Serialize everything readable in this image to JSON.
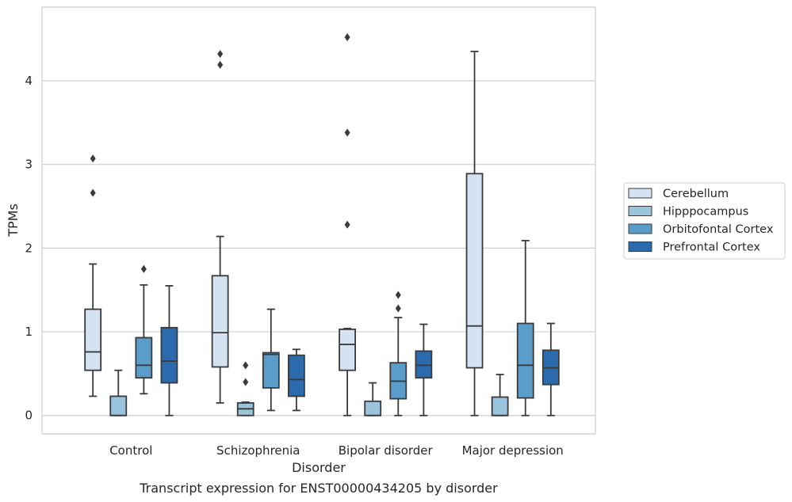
{
  "chart_data": {
    "type": "box",
    "title": "",
    "caption": "Transcript expression for ENST00000434205 by disorder",
    "xlabel": "Disorder",
    "ylabel": "TPMs",
    "ylim": [
      -0.22,
      4.88
    ],
    "yticks": [
      0,
      1,
      2,
      3,
      4
    ],
    "grid": "horizontal",
    "legend_position": "right",
    "categories": [
      "Control",
      "Schizophrenia",
      "Bipolar disorder",
      "Major depression"
    ],
    "series": [
      {
        "name": "Cerebellum",
        "color": "#d3e3f1",
        "boxes": [
          {
            "whislo": 0.23,
            "q1": 0.54,
            "med": 0.76,
            "q3": 1.27,
            "whishi": 1.81,
            "fliers": [
              2.66,
              3.07
            ]
          },
          {
            "whislo": 0.15,
            "q1": 0.58,
            "med": 0.99,
            "q3": 1.67,
            "whishi": 2.14,
            "fliers": [
              4.19,
              4.32
            ]
          },
          {
            "whislo": 0.0,
            "q1": 0.54,
            "med": 0.85,
            "q3": 1.03,
            "whishi": 1.04,
            "fliers": [
              2.28,
              3.38,
              4.52
            ]
          },
          {
            "whislo": 0.0,
            "q1": 0.57,
            "med": 1.07,
            "q3": 2.89,
            "whishi": 4.35,
            "fliers": []
          }
        ]
      },
      {
        "name": "Hipppocampus",
        "color": "#9ac3de",
        "boxes": [
          {
            "whislo": 0.0,
            "q1": 0.0,
            "med": 0.0,
            "q3": 0.23,
            "whishi": 0.54,
            "fliers": []
          },
          {
            "whislo": 0.0,
            "q1": 0.0,
            "med": 0.08,
            "q3": 0.15,
            "whishi": 0.16,
            "fliers": [
              0.4,
              0.6
            ]
          },
          {
            "whislo": 0.0,
            "q1": 0.0,
            "med": 0.0,
            "q3": 0.17,
            "whishi": 0.39,
            "fliers": []
          },
          {
            "whislo": 0.0,
            "q1": 0.0,
            "med": 0.0,
            "q3": 0.22,
            "whishi": 0.49,
            "fliers": []
          }
        ]
      },
      {
        "name": "Orbitofontal Cortex",
        "color": "#5a9dca",
        "boxes": [
          {
            "whislo": 0.26,
            "q1": 0.45,
            "med": 0.6,
            "q3": 0.93,
            "whishi": 1.56,
            "fliers": [
              1.75
            ]
          },
          {
            "whislo": 0.06,
            "q1": 0.33,
            "med": 0.73,
            "q3": 0.75,
            "whishi": 1.27,
            "fliers": []
          },
          {
            "whislo": 0.0,
            "q1": 0.2,
            "med": 0.41,
            "q3": 0.63,
            "whishi": 1.17,
            "fliers": [
              1.28,
              1.44
            ]
          },
          {
            "whislo": 0.0,
            "q1": 0.21,
            "med": 0.6,
            "q3": 1.1,
            "whishi": 2.09,
            "fliers": []
          }
        ]
      },
      {
        "name": "Prefrontal Cortex",
        "color": "#2b6aad",
        "boxes": [
          {
            "whislo": 0.0,
            "q1": 0.39,
            "med": 0.65,
            "q3": 1.05,
            "whishi": 1.55,
            "fliers": []
          },
          {
            "whislo": 0.06,
            "q1": 0.23,
            "med": 0.43,
            "q3": 0.72,
            "whishi": 0.79,
            "fliers": []
          },
          {
            "whislo": 0.0,
            "q1": 0.45,
            "med": 0.6,
            "q3": 0.77,
            "whishi": 1.09,
            "fliers": []
          },
          {
            "whislo": 0.0,
            "q1": 0.37,
            "med": 0.57,
            "q3": 0.78,
            "whishi": 1.1,
            "fliers": []
          }
        ]
      }
    ]
  },
  "colors": {
    "grid": "#cfcfcf",
    "frame": "#cccccc",
    "box_line": "#3a3a3a"
  }
}
